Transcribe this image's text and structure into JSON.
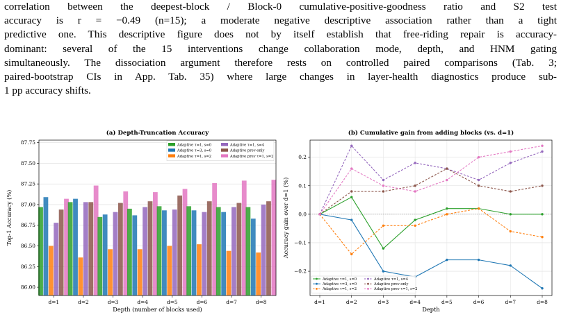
{
  "paragraph": {
    "lines": [
      "correlation between the deepest-block / Block-0 cumulative-positive-goodness ratio and S2 test",
      "accuracy is r = −0.49 (n=15); a moderate negative descriptive association rather than a tight",
      "predictive one. This descriptive figure does not by itself establish that free-riding repair is accuracy-",
      "dominant: several of the 15 interventions change collaboration mode, depth, and HNM gating",
      "simultaneously. The dissociation argument therefore rests on controlled paired comparisons (Tab. 3;",
      "paired-bootstrap CIs in App. Tab. 35) where large changes in layer-health diagnostics produce sub-",
      "1 pp accuracy shifts."
    ]
  },
  "chart_data": [
    {
      "type": "bar",
      "title": "(a) Depth-Truncation Accuracy",
      "xlabel": "Depth (number of blocks used)",
      "ylabel": "Top-1 Accuracy (%)",
      "ylim": [
        85.9,
        87.78
      ],
      "yticks": [
        "86.00",
        "86.25",
        "86.50",
        "86.75",
        "87.00",
        "87.25",
        "87.50",
        "87.75"
      ],
      "categories": [
        "d=1",
        "d=2",
        "d=3",
        "d=4",
        "d=5",
        "d=6",
        "d=7",
        "d=8"
      ],
      "grid": true,
      "legend_position": "top-right",
      "series": [
        {
          "name": "Adaptive τ=1, s=0",
          "color": "#2ca02c",
          "values": [
            86.97,
            87.03,
            86.85,
            86.95,
            86.98,
            86.98,
            86.97,
            86.97
          ]
        },
        {
          "name": "Adaptive τ=3, s=0",
          "color": "#1f77b4",
          "values": [
            87.09,
            87.07,
            86.88,
            86.87,
            86.93,
            86.93,
            86.91,
            86.83
          ]
        },
        {
          "name": "Adaptive τ=1, s=2",
          "color": "#ff7f0e",
          "values": [
            86.5,
            86.36,
            86.46,
            86.46,
            86.5,
            86.52,
            86.44,
            86.42
          ]
        },
        {
          "name": "Adaptive τ=1, s=4",
          "color": "#9467bd",
          "values": [
            86.78,
            87.03,
            86.91,
            86.97,
            86.94,
            86.91,
            86.97,
            87.0
          ]
        },
        {
          "name": "Adaptive prev-only",
          "color": "#8c564b",
          "values": [
            86.94,
            87.03,
            87.02,
            87.04,
            87.11,
            87.04,
            87.02,
            87.04
          ]
        },
        {
          "name": "Adaptive prev τ=1, s=2",
          "color": "#e377c2",
          "values": [
            87.07,
            87.23,
            87.16,
            87.15,
            87.19,
            87.26,
            87.29,
            87.3
          ]
        }
      ]
    },
    {
      "type": "line",
      "title": "(b) Cumulative gain from adding blocks (vs. d=1)",
      "xlabel": "Depth",
      "ylabel": "Accuracy gain over d=1 (%)",
      "ylim": [
        -0.285,
        0.26
      ],
      "yticks": [
        "−0.2",
        "−0.1",
        "0.0",
        "0.1",
        "0.2"
      ],
      "categories": [
        "d=1",
        "d=2",
        "d=3",
        "d=4",
        "d=5",
        "d=6",
        "d=7",
        "d=8"
      ],
      "grid": true,
      "legend_position": "bottom-left",
      "series": [
        {
          "name": "Adaptive τ=1, s=0",
          "color": "#2ca02c",
          "dashed": false,
          "values": [
            0,
            0.06,
            -0.12,
            -0.02,
            0.02,
            0.02,
            0,
            0
          ]
        },
        {
          "name": "Adaptive τ=3, s=0",
          "color": "#1f77b4",
          "dashed": false,
          "values": [
            0,
            -0.02,
            -0.2,
            -0.22,
            -0.16,
            -0.16,
            -0.18,
            -0.26
          ]
        },
        {
          "name": "Adaptive τ=1, s=2",
          "color": "#ff7f0e",
          "dashed": true,
          "values": [
            0,
            -0.14,
            -0.04,
            -0.04,
            0,
            0.02,
            -0.06,
            -0.08
          ]
        },
        {
          "name": "Adaptive τ=1, s=4",
          "color": "#9467bd",
          "dashed": true,
          "values": [
            0,
            0.24,
            0.12,
            0.18,
            0.16,
            0.12,
            0.18,
            0.22
          ]
        },
        {
          "name": "Adaptive prev-only",
          "color": "#8c564b",
          "dashed": true,
          "values": [
            0,
            0.08,
            0.08,
            0.1,
            0.16,
            0.1,
            0.08,
            0.1
          ]
        },
        {
          "name": "Adaptive prev τ=1, s=2",
          "color": "#e377c2",
          "dashed": true,
          "values": [
            0,
            0.16,
            0.1,
            0.08,
            0.12,
            0.2,
            0.22,
            0.24
          ]
        }
      ]
    }
  ]
}
